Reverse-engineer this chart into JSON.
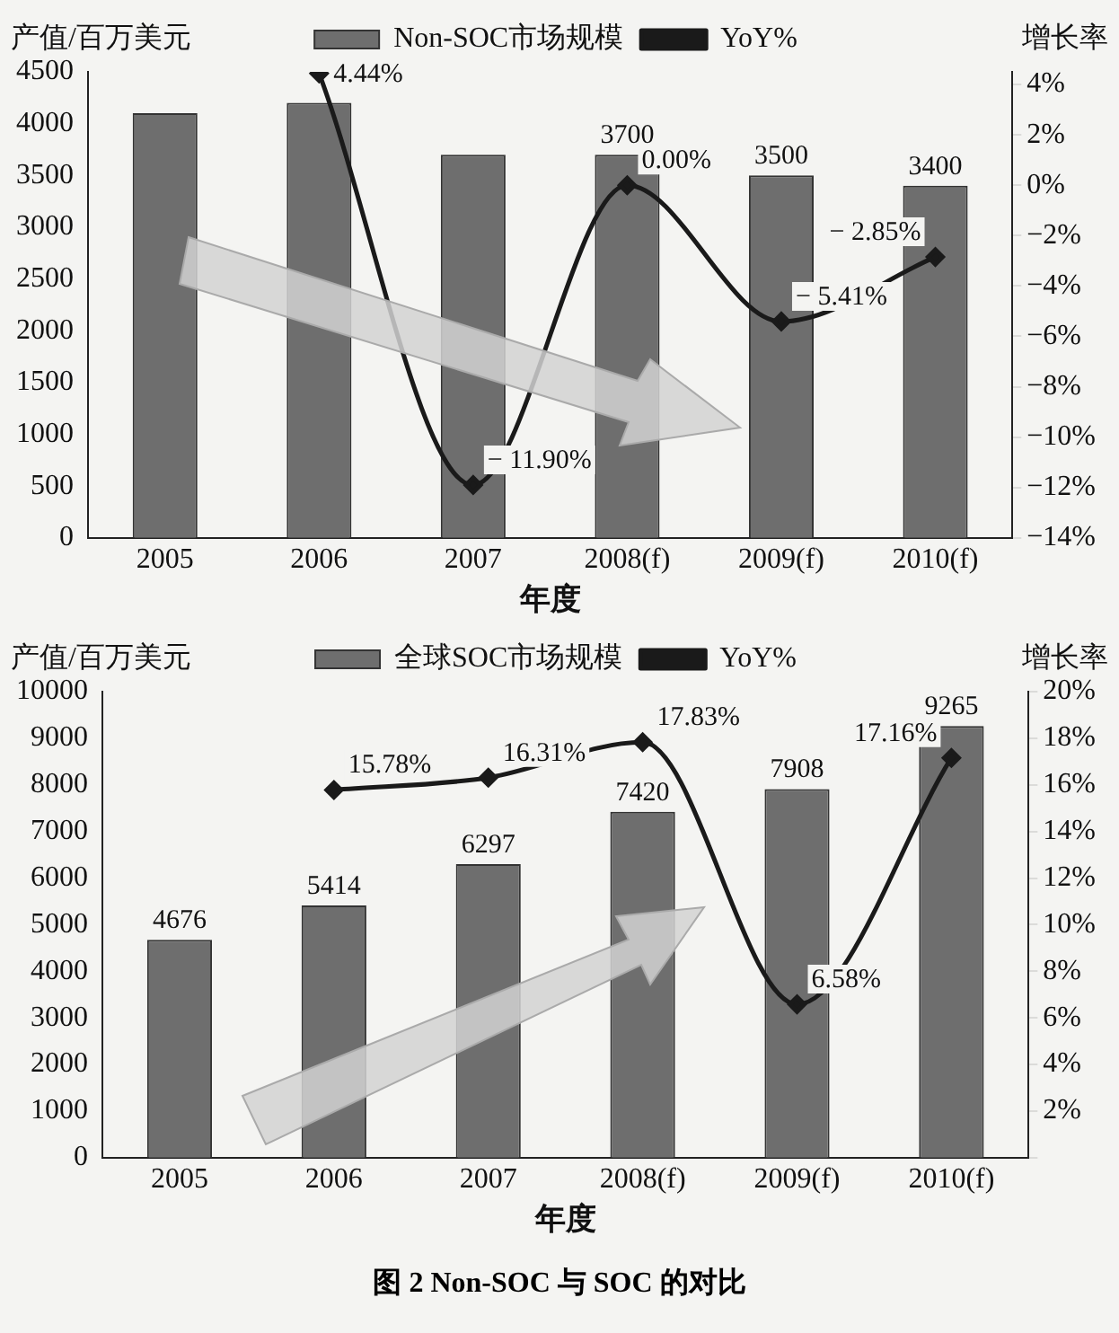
{
  "chart_data": [
    {
      "type": "bar",
      "categories": [
        "2005",
        "2006",
        "2007",
        "2008(f)",
        "2009(f)",
        "2010(f)"
      ],
      "series": [
        {
          "name": "Non-SOC市场规模",
          "color": "#6e6e6e",
          "values": [
            4100,
            4200,
            3700,
            3700,
            3500,
            3400
          ],
          "value_labels": [
            null,
            null,
            null,
            "3700",
            "3500",
            "3400"
          ]
        },
        {
          "name": "YoY%",
          "type": "line",
          "axis": "y2",
          "color": "#1a1a1a",
          "marker": "diamond",
          "values": [
            null,
            4.44,
            -11.9,
            0,
            -5.41,
            -2.85
          ],
          "value_labels": [
            null,
            "4.44%",
            "− 11.90%",
            "0.00%",
            "− 5.41%",
            "− 2.85%"
          ]
        }
      ],
      "xlabel": "年度",
      "ylabel": "产值/百万美元",
      "y2label": "增长率",
      "ylim": [
        0,
        4500
      ],
      "yticks": [
        0,
        500,
        1000,
        1500,
        2000,
        2500,
        3000,
        3500,
        4000,
        4500
      ],
      "y2lim": [
        -14,
        4.5
      ],
      "y2ticks": [
        {
          "value": -14,
          "label": "−14%"
        },
        {
          "value": -12,
          "label": "−12%"
        },
        {
          "value": -10,
          "label": "−10%"
        },
        {
          "value": -8,
          "label": "−8%"
        },
        {
          "value": -6,
          "label": "−6%"
        },
        {
          "value": -4,
          "label": "−4%"
        },
        {
          "value": -2,
          "label": "−2%"
        },
        {
          "value": 0,
          "label": "0%"
        },
        {
          "value": 2,
          "label": "2%"
        },
        {
          "value": 4,
          "label": "4%"
        }
      ],
      "legend": "top",
      "grid": false
    },
    {
      "type": "bar",
      "categories": [
        "2005",
        "2006",
        "2007",
        "2008(f)",
        "2009(f)",
        "2010(f)"
      ],
      "series": [
        {
          "name": "全球SOC市场规模",
          "color": "#6e6e6e",
          "values": [
            4676,
            5414,
            6297,
            7420,
            7908,
            9265
          ],
          "value_labels": [
            "4676",
            "5414",
            "6297",
            "7420",
            "7908",
            "9265"
          ]
        },
        {
          "name": "YoY%",
          "type": "line",
          "axis": "y2",
          "color": "#1a1a1a",
          "marker": "diamond",
          "values": [
            null,
            15.78,
            16.31,
            17.83,
            6.58,
            17.16
          ],
          "value_labels": [
            null,
            "15.78%",
            "16.31%",
            "17.83%",
            "6.58%",
            "17.16%"
          ]
        }
      ],
      "xlabel": "年度",
      "ylabel": "产值/百万美元",
      "y2label": "增长率",
      "ylim": [
        0,
        10000
      ],
      "yticks": [
        0,
        1000,
        2000,
        3000,
        4000,
        5000,
        6000,
        7000,
        8000,
        9000,
        10000
      ],
      "y2lim": [
        0,
        20
      ],
      "y2ticks": [
        {
          "value": 0,
          "label": null
        },
        {
          "value": 2,
          "label": "2%"
        },
        {
          "value": 4,
          "label": "4%"
        },
        {
          "value": 6,
          "label": "6%"
        },
        {
          "value": 8,
          "label": "8%"
        },
        {
          "value": 10,
          "label": "10%"
        },
        {
          "value": 12,
          "label": "12%"
        },
        {
          "value": 14,
          "label": "14%"
        },
        {
          "value": 16,
          "label": "16%"
        },
        {
          "value": 18,
          "label": "18%"
        },
        {
          "value": 20,
          "label": "20%"
        }
      ],
      "legend": "top",
      "grid": false,
      "annotations": [
        "图 2 Non-SOC 与 SOC 的对比"
      ]
    }
  ]
}
